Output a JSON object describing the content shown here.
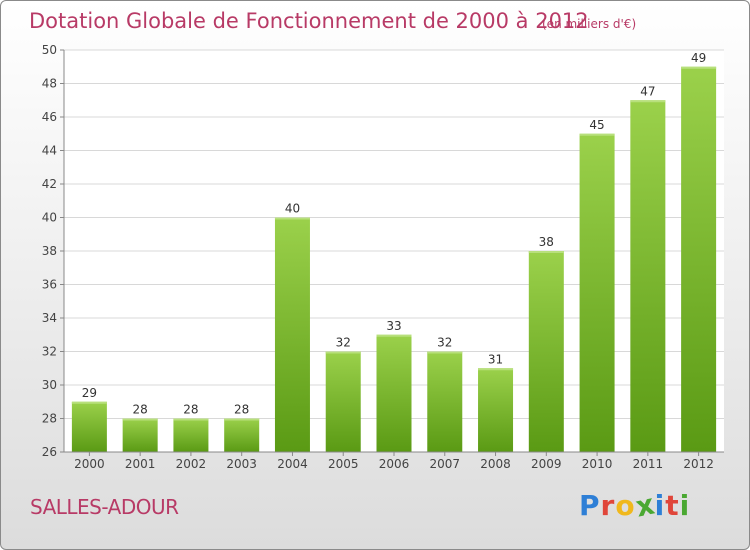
{
  "header": {
    "title": "Dotation Globale de Fonctionnement de 2000 à 2012",
    "unit": "(en milliers d'€)"
  },
  "footer": {
    "commune": "SALLES-ADOUR",
    "logo_letters": [
      "P",
      "r",
      "o",
      "x",
      "i",
      "t",
      "i"
    ],
    "logo_colors": [
      "#2e7fd6",
      "#e0463a",
      "#f0b81d",
      "#4aa832",
      "#2e7fd6",
      "#e0463a",
      "#4aa832"
    ]
  },
  "chart_data": {
    "type": "bar",
    "categories": [
      "2000",
      "2001",
      "2002",
      "2003",
      "2004",
      "2005",
      "2006",
      "2007",
      "2008",
      "2009",
      "2010",
      "2011",
      "2012"
    ],
    "values": [
      29,
      28,
      28,
      28,
      40,
      32,
      33,
      32,
      31,
      38,
      45,
      47,
      49
    ],
    "ylim": [
      26,
      50
    ],
    "yticks": [
      26,
      28,
      30,
      32,
      34,
      36,
      38,
      40,
      42,
      44,
      46,
      48,
      50
    ],
    "grid": true,
    "bar_color_top": "#9bd14b",
    "bar_color_bottom": "#5a9a14"
  }
}
